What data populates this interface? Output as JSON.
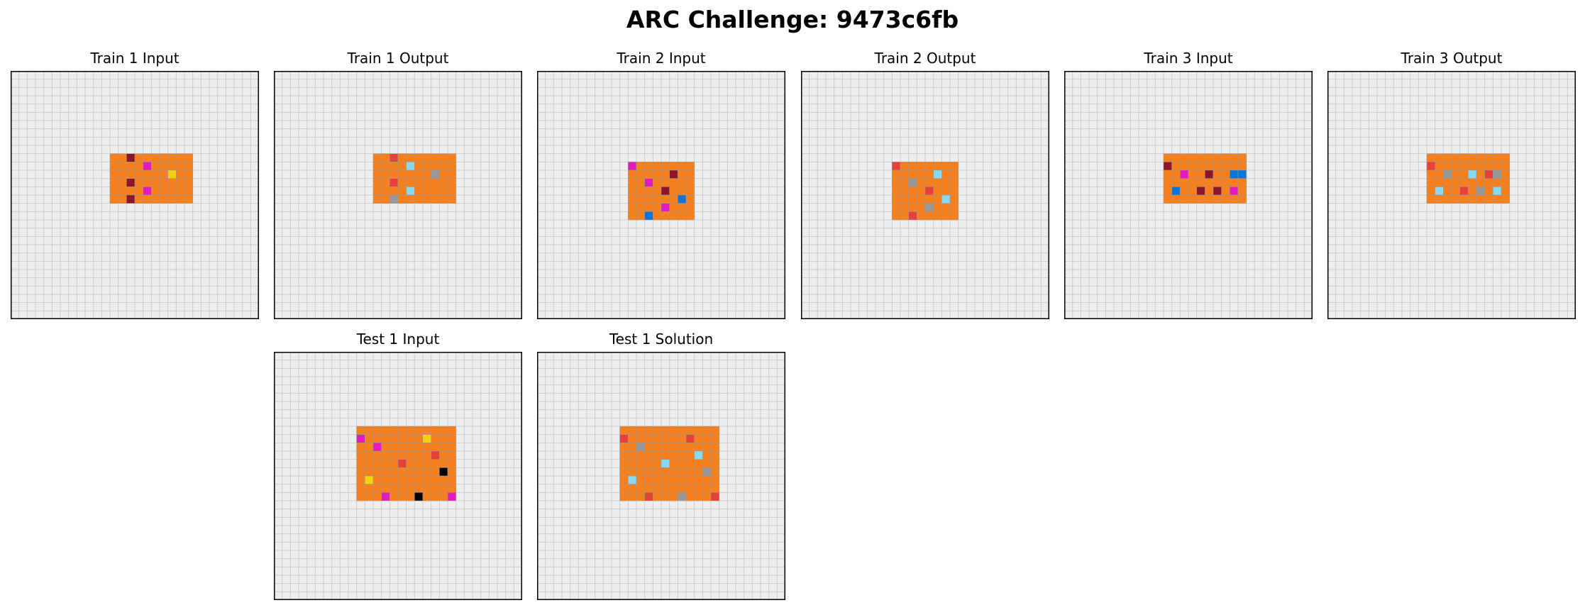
{
  "title": "ARC Challenge: 9473c6fb",
  "grid_size": 30,
  "palette": {
    "background": "#eeeeee",
    "gridline": "#cccccc",
    "cellline": "#999999",
    "border": "#000000",
    "O": "#f5801d",
    "M": "#8a1728",
    "P": "#e21bbc",
    "Y": "#f3d10c",
    "R": "#e93f3a",
    "C": "#88d8f1",
    "G": "#999999",
    "B": "#0a74d8",
    "K": "#000000"
  },
  "panels": [
    {
      "label": "Train 1 Input",
      "origin": [
        12,
        10
      ],
      "rows": [
        "OOMOOOOOOO",
        "OOOOPOOOOO",
        "OOOOOOOYOO",
        "OOMOOOOOOO",
        "OOOOPOOOOO",
        "OOMOOOOOOO"
      ]
    },
    {
      "label": "Train 1 Output",
      "origin": [
        12,
        10
      ],
      "rows": [
        "OOROOOOOOO",
        "OOOOCOOOOO",
        "OOOOOOOGOO",
        "OOROOOOOOO",
        "OOOOCOOOOO",
        "OOGOOOOOOO"
      ]
    },
    {
      "label": "Train 2 Input",
      "origin": [
        11,
        11
      ],
      "rows": [
        "POOOOOOO",
        "OOOOOMOO",
        "OOPOOOOO",
        "OOOOMOOO",
        "OOOOOOBO",
        "OOOOPOOO",
        "OOBOOOOO"
      ]
    },
    {
      "label": "Train 2 Output",
      "origin": [
        11,
        11
      ],
      "rows": [
        "ROOOOOOO",
        "OOOOOCOO",
        "OOGOOOOO",
        "OOOOROOO",
        "OOOOOOCO",
        "OOOOGOOO",
        "OOROOOOO"
      ]
    },
    {
      "label": "Train 3 Input",
      "origin": [
        12,
        10
      ],
      "rows": [
        "OOOOOOOOOO",
        "MOOOOOOOOO",
        "OOPOOMOOBB",
        "OOOOOOOOOO",
        "OBOOMOMOPO",
        "OOOOOOOOOO"
      ]
    },
    {
      "label": "Train 3 Output",
      "origin": [
        12,
        10
      ],
      "rows": [
        "OOOOOOOOOO",
        "ROOOOOOOOO",
        "OOGOOCORGO",
        "OOOOOOOOOO",
        "OCOOROGOCO",
        "OOOOOOOOOO"
      ]
    },
    {
      "label": "Test 1 Input",
      "origin": [
        10,
        9
      ],
      "rows": [
        "OOOOOOOOOOOO",
        "POOOOOOOYOOO",
        "OOPOOOOOOOOO",
        "OOOOOOOOOROO",
        "OOOOOROOOOOO",
        "OOOOOOOOOOKO",
        "OYOOOOOOOOOO",
        "OOOOOOOOOOOO",
        "OOOPOOOKOOOP"
      ]
    },
    {
      "label": "Test 1 Solution",
      "origin": [
        10,
        9
      ],
      "rows": [
        "OOOOOOOOOOOO",
        "ROOOOOOOROOO",
        "OOGOOOOOOOOO",
        "OOOOOOOOOCOO",
        "OOOOOCOOOOOO",
        "OOOOOOOOOOGO",
        "OCOOOOOOOOOO",
        "OOOOOOOOOOOO",
        "OOOROOOGOOOR"
      ]
    }
  ]
}
